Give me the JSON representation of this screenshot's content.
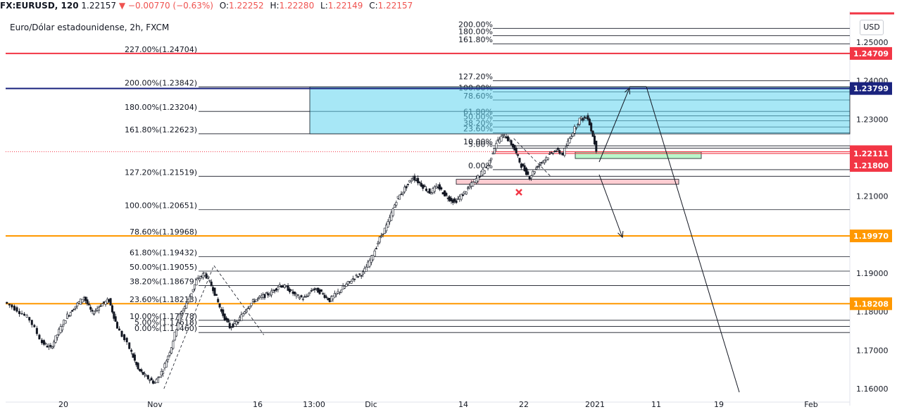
{
  "header": {
    "symbol": "FX:EURUSD, 120",
    "last": "1.22157",
    "change": "−0.00770 (−0.63%)",
    "open_label": "O:",
    "open": "1.22252",
    "high_label": "H:",
    "high": "1.22280",
    "low_label": "L:",
    "low": "1.22149",
    "close_label": "C:",
    "close": "1.22157",
    "down_arrow": "▼"
  },
  "chart_data": {
    "type": "candlestick",
    "title": "Euro/Dólar estadounidense, 2h, FXCM",
    "currency": "USD",
    "ylim": [
      1.1575,
      1.2605
    ],
    "y_ticks": [
      "1.25000",
      "1.24000",
      "1.23000",
      "1.22000",
      "1.21000",
      "1.20000",
      "1.19000",
      "1.18000",
      "1.17000",
      "1.16000"
    ],
    "x_ticks": [
      "20",
      "Nov",
      "16",
      "13:00",
      "Dic",
      "14",
      "22",
      "2021",
      "11",
      "19",
      "Feb"
    ],
    "right_fib": [
      {
        "label": "200.00%",
        "price": 1.2536
      },
      {
        "label": "180.00%",
        "price": 1.2517
      },
      {
        "label": "161.80%",
        "price": 1.2496
      },
      {
        "label": "127.20%",
        "price": 1.24
      },
      {
        "label": "100.00%",
        "price": 1.2371
      },
      {
        "label": "78.60%",
        "price": 1.235
      },
      {
        "label": "61.80%",
        "price": 1.2309
      },
      {
        "label": "50.00%",
        "price": 1.2296
      },
      {
        "label": "38.20%",
        "price": 1.228
      },
      {
        "label": "23.60%",
        "price": 1.2265
      },
      {
        "label": "10.00%",
        "price": 1.2231
      },
      {
        "label": "5.00%",
        "price": 1.2225
      },
      {
        "label": "0.00%",
        "price": 1.2169
      }
    ],
    "left_fib": [
      {
        "label": "227.00%(1.24704)",
        "price": 1.24704
      },
      {
        "label": "200.00%(1.23842)",
        "price": 1.23842
      },
      {
        "label": "180.00%(1.23204)",
        "price": 1.23204
      },
      {
        "label": "161.80%(1.22623)",
        "price": 1.22623
      },
      {
        "label": "127.20%(1.21519)",
        "price": 1.21519
      },
      {
        "label": "100.00%(1.20651)",
        "price": 1.20651
      },
      {
        "label": "78.60%(1.19968)",
        "price": 1.19968
      },
      {
        "label": "61.80%(1.19432)",
        "price": 1.19432
      },
      {
        "label": "50.00%(1.19055)",
        "price": 1.19055
      },
      {
        "label": "38.20%(1.18679)",
        "price": 1.18679
      },
      {
        "label": "23.60%(1.18213)",
        "price": 1.18213
      },
      {
        "label": "10.00%(1.17778)",
        "price": 1.17778
      },
      {
        "label": "5.00%(1.17618)",
        "price": 1.17618
      },
      {
        "label": "0.00%(1.17460)",
        "price": 1.1746
      }
    ],
    "price_tags": [
      {
        "label": "1.24709",
        "price": 1.24709,
        "color": "#f23645"
      },
      {
        "label": "1.23799",
        "price": 1.23799,
        "color": "#1a237e"
      },
      {
        "label": "1.22157",
        "price": 1.22157,
        "color": "#f23645"
      },
      {
        "label": "1.22111",
        "price": 1.22111,
        "color": "#f23645"
      },
      {
        "label": "1.21800",
        "price": 1.218,
        "color": "#f23645"
      },
      {
        "label": "1.19970",
        "price": 1.1997,
        "color": "#ff9800"
      },
      {
        "label": "1.18208",
        "price": 1.18208,
        "color": "#ff9800"
      }
    ],
    "colors": {
      "up": "#26a69a",
      "down": "#131722",
      "resistance_red": "#f23645",
      "resistance_blue": "#1a237e",
      "support_orange": "#ff9800",
      "target_zone": "#5ed3ee",
      "green_zone": "#b9f6ca",
      "red_zone": "#ffcdd2"
    },
    "price_path": [
      [
        0,
        1.1825
      ],
      [
        3,
        1.1805
      ],
      [
        6,
        1.178
      ],
      [
        9,
        1.172
      ],
      [
        11,
        1.1705
      ],
      [
        13,
        1.175
      ],
      [
        15,
        1.179
      ],
      [
        17,
        1.1815
      ],
      [
        19,
        1.1838
      ],
      [
        21,
        1.1795
      ],
      [
        23,
        1.1818
      ],
      [
        25,
        1.183
      ],
      [
        27,
        1.176
      ],
      [
        30,
        1.1705
      ],
      [
        32,
        1.165
      ],
      [
        34,
        1.163
      ],
      [
        36,
        1.1615
      ],
      [
        38,
        1.165
      ],
      [
        40,
        1.171
      ],
      [
        42,
        1.179
      ],
      [
        44,
        1.183
      ],
      [
        46,
        1.188
      ],
      [
        48,
        1.19
      ],
      [
        50,
        1.186
      ],
      [
        52,
        1.18
      ],
      [
        54,
        1.176
      ],
      [
        56,
        1.1775
      ],
      [
        58,
        1.181
      ],
      [
        60,
        1.183
      ],
      [
        62,
        1.184
      ],
      [
        64,
        1.185
      ],
      [
        66,
        1.187
      ],
      [
        68,
        1.186
      ],
      [
        70,
        1.184
      ],
      [
        72,
        1.1835
      ],
      [
        74,
        1.186
      ],
      [
        76,
        1.185
      ],
      [
        78,
        1.183
      ],
      [
        80,
        1.185
      ],
      [
        82,
        1.187
      ],
      [
        84,
        1.189
      ],
      [
        86,
        1.19
      ],
      [
        88,
        1.194
      ],
      [
        90,
        1.199
      ],
      [
        92,
        1.203
      ],
      [
        94,
        1.209
      ],
      [
        96,
        1.212
      ],
      [
        98,
        1.215
      ],
      [
        100,
        1.213
      ],
      [
        102,
        1.211
      ],
      [
        104,
        1.2125
      ],
      [
        106,
        1.21
      ],
      [
        108,
        1.2085
      ],
      [
        110,
        1.2105
      ],
      [
        112,
        1.213
      ],
      [
        114,
        1.2155
      ],
      [
        116,
        1.218
      ],
      [
        118,
        1.224
      ],
      [
        120,
        1.226
      ],
      [
        122,
        1.223
      ],
      [
        124,
        1.218
      ],
      [
        126,
        1.215
      ],
      [
        128,
        1.218
      ],
      [
        130,
        1.22
      ],
      [
        132,
        1.222
      ],
      [
        134,
        1.221
      ],
      [
        136,
        1.226
      ],
      [
        138,
        1.23
      ],
      [
        140,
        1.2305
      ],
      [
        142,
        1.2222
      ]
    ]
  }
}
